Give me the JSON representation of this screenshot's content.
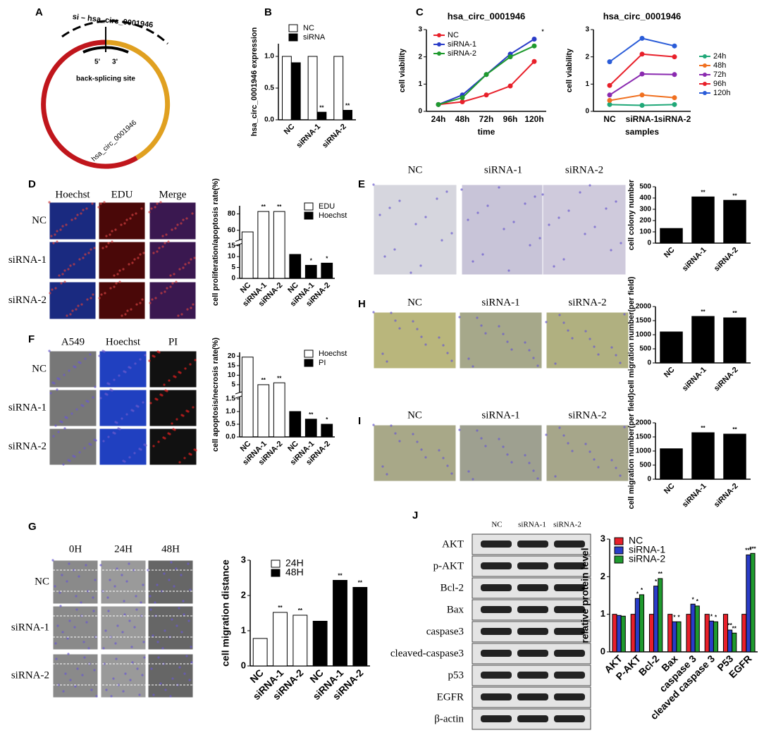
{
  "panels": {
    "panel_labels": [
      "A",
      "B",
      "C",
      "D",
      "E",
      "F",
      "G",
      "H",
      "I",
      "J"
    ],
    "A": {
      "arc_label": "si – hsa_circ_0001946",
      "five": "5'",
      "three": "3'",
      "site": "back-splicing site",
      "circ_label": "hsa_circ_0001946"
    },
    "D": {
      "columns": [
        "Hoechst",
        "EDU",
        "Merge"
      ],
      "rows": [
        "NC",
        "siRNA-1",
        "siRNA-2"
      ]
    },
    "E": {
      "columns": [
        "NC",
        "siRNA-1",
        "siRNA-2"
      ]
    },
    "F": {
      "columns": [
        "A549",
        "Hoechst",
        "PI"
      ],
      "rows": [
        "NC",
        "siRNA-1",
        "siRNA-2"
      ]
    },
    "G": {
      "columns": [
        "0H",
        "24H",
        "48H"
      ],
      "rows": [
        "NC",
        "siRNA-1",
        "siRNA-2"
      ]
    },
    "H": {
      "columns": [
        "NC",
        "siRNA-1",
        "siRNA-2"
      ]
    },
    "I": {
      "columns": [
        "NC",
        "siRNA-1",
        "siRNA-2"
      ]
    },
    "J": {
      "columns": [
        "NC",
        "siRNA-1",
        "siRNA-2"
      ],
      "rows": [
        "AKT",
        "p-AKT",
        "Bcl-2",
        "Bax",
        "caspase3",
        "cleaved-caspase3",
        "p53",
        "EGFR",
        "β-actin"
      ]
    }
  },
  "chart_data": [
    {
      "type": "bar",
      "ylabel": "hsa_circ_0001946 expression",
      "categories": [
        "NC",
        "siRNA-1",
        "siRNA-2"
      ],
      "series": [
        {
          "name": "NC",
          "color": "#ffffff",
          "values": [
            1,
            1,
            1
          ]
        },
        {
          "name": "siRNA",
          "color": "#000000",
          "values": [
            0.9,
            0.12,
            0.15
          ]
        }
      ],
      "ylim": [
        0,
        1.2
      ],
      "yticks": [
        {
          "value": 0,
          "label": "0.0"
        },
        {
          "value": 0.5,
          "label": "0.5"
        },
        {
          "value": 1,
          "label": "1.0"
        }
      ],
      "annotations": [
        {
          "text": "**",
          "series": 1,
          "index": 1
        },
        {
          "text": "**",
          "series": 1,
          "index": 2
        }
      ]
    },
    {
      "type": "line",
      "title": "hsa_circ_0001946",
      "xlabel": "time",
      "ylabel": "cell viability",
      "categories": [
        "24h",
        "48h",
        "72h",
        "96h",
        "120h"
      ],
      "series": [
        {
          "name": "NC",
          "color": "#e8202a",
          "values": [
            0.25,
            0.35,
            0.6,
            0.93,
            1.83
          ]
        },
        {
          "name": "siRNA-1",
          "color": "#2a3cc8",
          "values": [
            0.25,
            0.6,
            1.35,
            2.1,
            2.65
          ]
        },
        {
          "name": "siRNA-2",
          "color": "#1f9a2e",
          "values": [
            0.25,
            0.5,
            1.35,
            2.0,
            2.4
          ]
        }
      ],
      "ylim": [
        0,
        3
      ],
      "yticks": [
        0,
        1,
        2,
        3
      ],
      "annotations": [
        {
          "text": "*",
          "series": 1,
          "index": 4
        }
      ]
    },
    {
      "type": "line",
      "title": "hsa_circ_0001946",
      "xlabel": "samples",
      "ylabel": "cell viability",
      "categories": [
        "NC",
        "siRNA-1",
        "siRNA-2"
      ],
      "series": [
        {
          "name": "24h",
          "color": "#20a878",
          "values": [
            0.25,
            0.22,
            0.25
          ]
        },
        {
          "name": "48h",
          "color": "#f07020",
          "values": [
            0.4,
            0.6,
            0.5
          ]
        },
        {
          "name": "72h",
          "color": "#8a2ab0",
          "values": [
            0.6,
            1.37,
            1.35
          ]
        },
        {
          "name": "96h",
          "color": "#e8202a",
          "values": [
            0.95,
            2.1,
            2.0
          ]
        },
        {
          "name": "120h",
          "color": "#2a5cd8",
          "values": [
            1.82,
            2.68,
            2.4
          ]
        }
      ],
      "ylim": [
        0,
        3
      ],
      "yticks": [
        0,
        1,
        2,
        3
      ]
    },
    {
      "type": "bar",
      "ylabel": "cell proliferation/apoptosis rate(%)",
      "categories": [
        "NC",
        "siRNA-1",
        "siRNA-2",
        "NC",
        "siRNA-1",
        "siRNA-2"
      ],
      "series": [
        {
          "name": "EDU",
          "color": "#ffffff",
          "values": [
            58,
            83,
            83,
            null,
            null,
            null
          ]
        },
        {
          "name": "Hoechst",
          "color": "#000000",
          "values": [
            null,
            null,
            null,
            11,
            6,
            7
          ]
        }
      ],
      "ylim": [
        0,
        90
      ],
      "ybreak": [
        15,
        50
      ],
      "yticks": [
        0,
        5,
        10,
        15,
        60,
        80
      ],
      "annotations": [
        {
          "text": "**",
          "series": 0,
          "index": 1
        },
        {
          "text": "**",
          "series": 0,
          "index": 2
        },
        {
          "text": "*",
          "series": 1,
          "index": 4
        },
        {
          "text": "*",
          "series": 1,
          "index": 5
        }
      ]
    },
    {
      "type": "bar",
      "ylabel": "cell colony number",
      "categories": [
        "NC",
        "siRNA-1",
        "siRNA-2"
      ],
      "color": "#000000",
      "values": [
        130,
        410,
        380
      ],
      "ylim": [
        0,
        500
      ],
      "yticks": [
        0,
        100,
        200,
        300,
        400,
        500
      ],
      "annotations": [
        {
          "text": "**",
          "series": 0,
          "index": 1
        },
        {
          "text": "**",
          "series": 0,
          "index": 2
        }
      ]
    },
    {
      "type": "bar",
      "ylabel": "cell migration number(per field)",
      "categories": [
        "NC",
        "siRNA-1",
        "siRNA-2"
      ],
      "color": "#000000",
      "values": [
        1100,
        1650,
        1600
      ],
      "ylim": [
        0,
        2000
      ],
      "yticks": [
        0,
        500,
        1000,
        1500,
        2000
      ],
      "annotations": [
        {
          "text": "**",
          "series": 0,
          "index": 1
        },
        {
          "text": "**",
          "series": 0,
          "index": 2
        }
      ]
    },
    {
      "type": "bar",
      "ylabel": "cell migration number(per field)",
      "categories": [
        "NC",
        "siRNA-1",
        "siRNA-2"
      ],
      "color": "#000000",
      "values": [
        1080,
        1650,
        1600
      ],
      "ylim": [
        0,
        2000
      ],
      "yticks": [
        0,
        500,
        1000,
        1500,
        2000
      ],
      "annotations": [
        {
          "text": "**",
          "series": 0,
          "index": 1
        },
        {
          "text": "**",
          "series": 0,
          "index": 2
        }
      ]
    },
    {
      "type": "bar",
      "ylabel": "cell apoptosis/necrosis rate(%)",
      "categories": [
        "NC",
        "siRNA-1",
        "siRNA-2",
        "NC",
        "siRNA-1",
        "siRNA-2"
      ],
      "series": [
        {
          "name": "Hoechst",
          "color": "#ffffff",
          "values": [
            19.5,
            5,
            6,
            null,
            null,
            null
          ]
        },
        {
          "name": "PI",
          "color": "#000000",
          "values": [
            null,
            null,
            null,
            1.0,
            0.7,
            0.5
          ]
        }
      ],
      "ylim": [
        0,
        22
      ],
      "ybreak": [
        1.5,
        2
      ],
      "yticks": [
        {
          "value": 0,
          "label": "0.0"
        },
        {
          "value": 0.5,
          "label": "0.5"
        },
        {
          "value": 1,
          "label": "1.0"
        },
        {
          "value": 1.5,
          "label": "1.5"
        },
        5,
        10,
        15,
        20
      ],
      "annotations": [
        {
          "text": "**",
          "series": 0,
          "index": 1
        },
        {
          "text": "**",
          "series": 0,
          "index": 2
        },
        {
          "text": "**",
          "series": 1,
          "index": 4
        },
        {
          "text": "*",
          "series": 1,
          "index": 5
        }
      ]
    },
    {
      "type": "bar",
      "ylabel": "cell migration distance",
      "categories": [
        "NC",
        "siRNA-1",
        "siRNA-2",
        "NC",
        "siRNA-1",
        "siRNA-2"
      ],
      "series": [
        {
          "name": "24H",
          "color": "#ffffff",
          "values": [
            0.78,
            1.52,
            1.44,
            null,
            null,
            null
          ]
        },
        {
          "name": "48H",
          "color": "#000000",
          "values": [
            null,
            null,
            null,
            1.27,
            2.43,
            2.23
          ]
        }
      ],
      "ylim": [
        0,
        3
      ],
      "yticks": [
        0,
        1,
        2,
        3
      ],
      "annotations": [
        {
          "text": "**",
          "series": 0,
          "index": 1
        },
        {
          "text": "**",
          "series": 0,
          "index": 2
        },
        {
          "text": "**",
          "series": 1,
          "index": 4
        },
        {
          "text": "**",
          "series": 1,
          "index": 5
        }
      ]
    },
    {
      "type": "bar",
      "ylabel": "relative protein level",
      "categories": [
        "AKT",
        "P-AKT",
        "Bcl-2",
        "Bax",
        "caspase 3",
        "cleaved caspase 3",
        "P53",
        "EGFR"
      ],
      "series": [
        {
          "name": "NC",
          "color": "#e8202a",
          "values": [
            1,
            1,
            1,
            1,
            1,
            1,
            1,
            1
          ]
        },
        {
          "name": "siRNA-1",
          "color": "#2a3cc8",
          "values": [
            0.97,
            1.42,
            1.75,
            0.8,
            1.27,
            0.82,
            0.58,
            2.58
          ]
        },
        {
          "name": "siRNA-2",
          "color": "#1f9a2e",
          "values": [
            0.95,
            1.52,
            1.95,
            0.8,
            1.22,
            0.8,
            0.5,
            2.62
          ]
        }
      ],
      "ylim": [
        0,
        3
      ],
      "yticks": [
        0,
        1,
        2,
        3
      ],
      "annotations": [
        {
          "text": "*",
          "series": 1,
          "index": 1
        },
        {
          "text": "*",
          "series": 2,
          "index": 1
        },
        {
          "text": "*",
          "series": 1,
          "index": 2
        },
        {
          "text": "**",
          "series": 2,
          "index": 2
        },
        {
          "text": "*",
          "series": 1,
          "index": 3
        },
        {
          "text": "*",
          "series": 2,
          "index": 3
        },
        {
          "text": "*",
          "series": 1,
          "index": 4
        },
        {
          "text": "*",
          "series": 2,
          "index": 4
        },
        {
          "text": "*",
          "series": 1,
          "index": 5
        },
        {
          "text": "*",
          "series": 2,
          "index": 5
        },
        {
          "text": "**",
          "series": 1,
          "index": 6
        },
        {
          "text": "**",
          "series": 2,
          "index": 6
        },
        {
          "text": "***",
          "series": 1,
          "index": 7
        },
        {
          "text": "***",
          "series": 2,
          "index": 7
        }
      ]
    }
  ]
}
